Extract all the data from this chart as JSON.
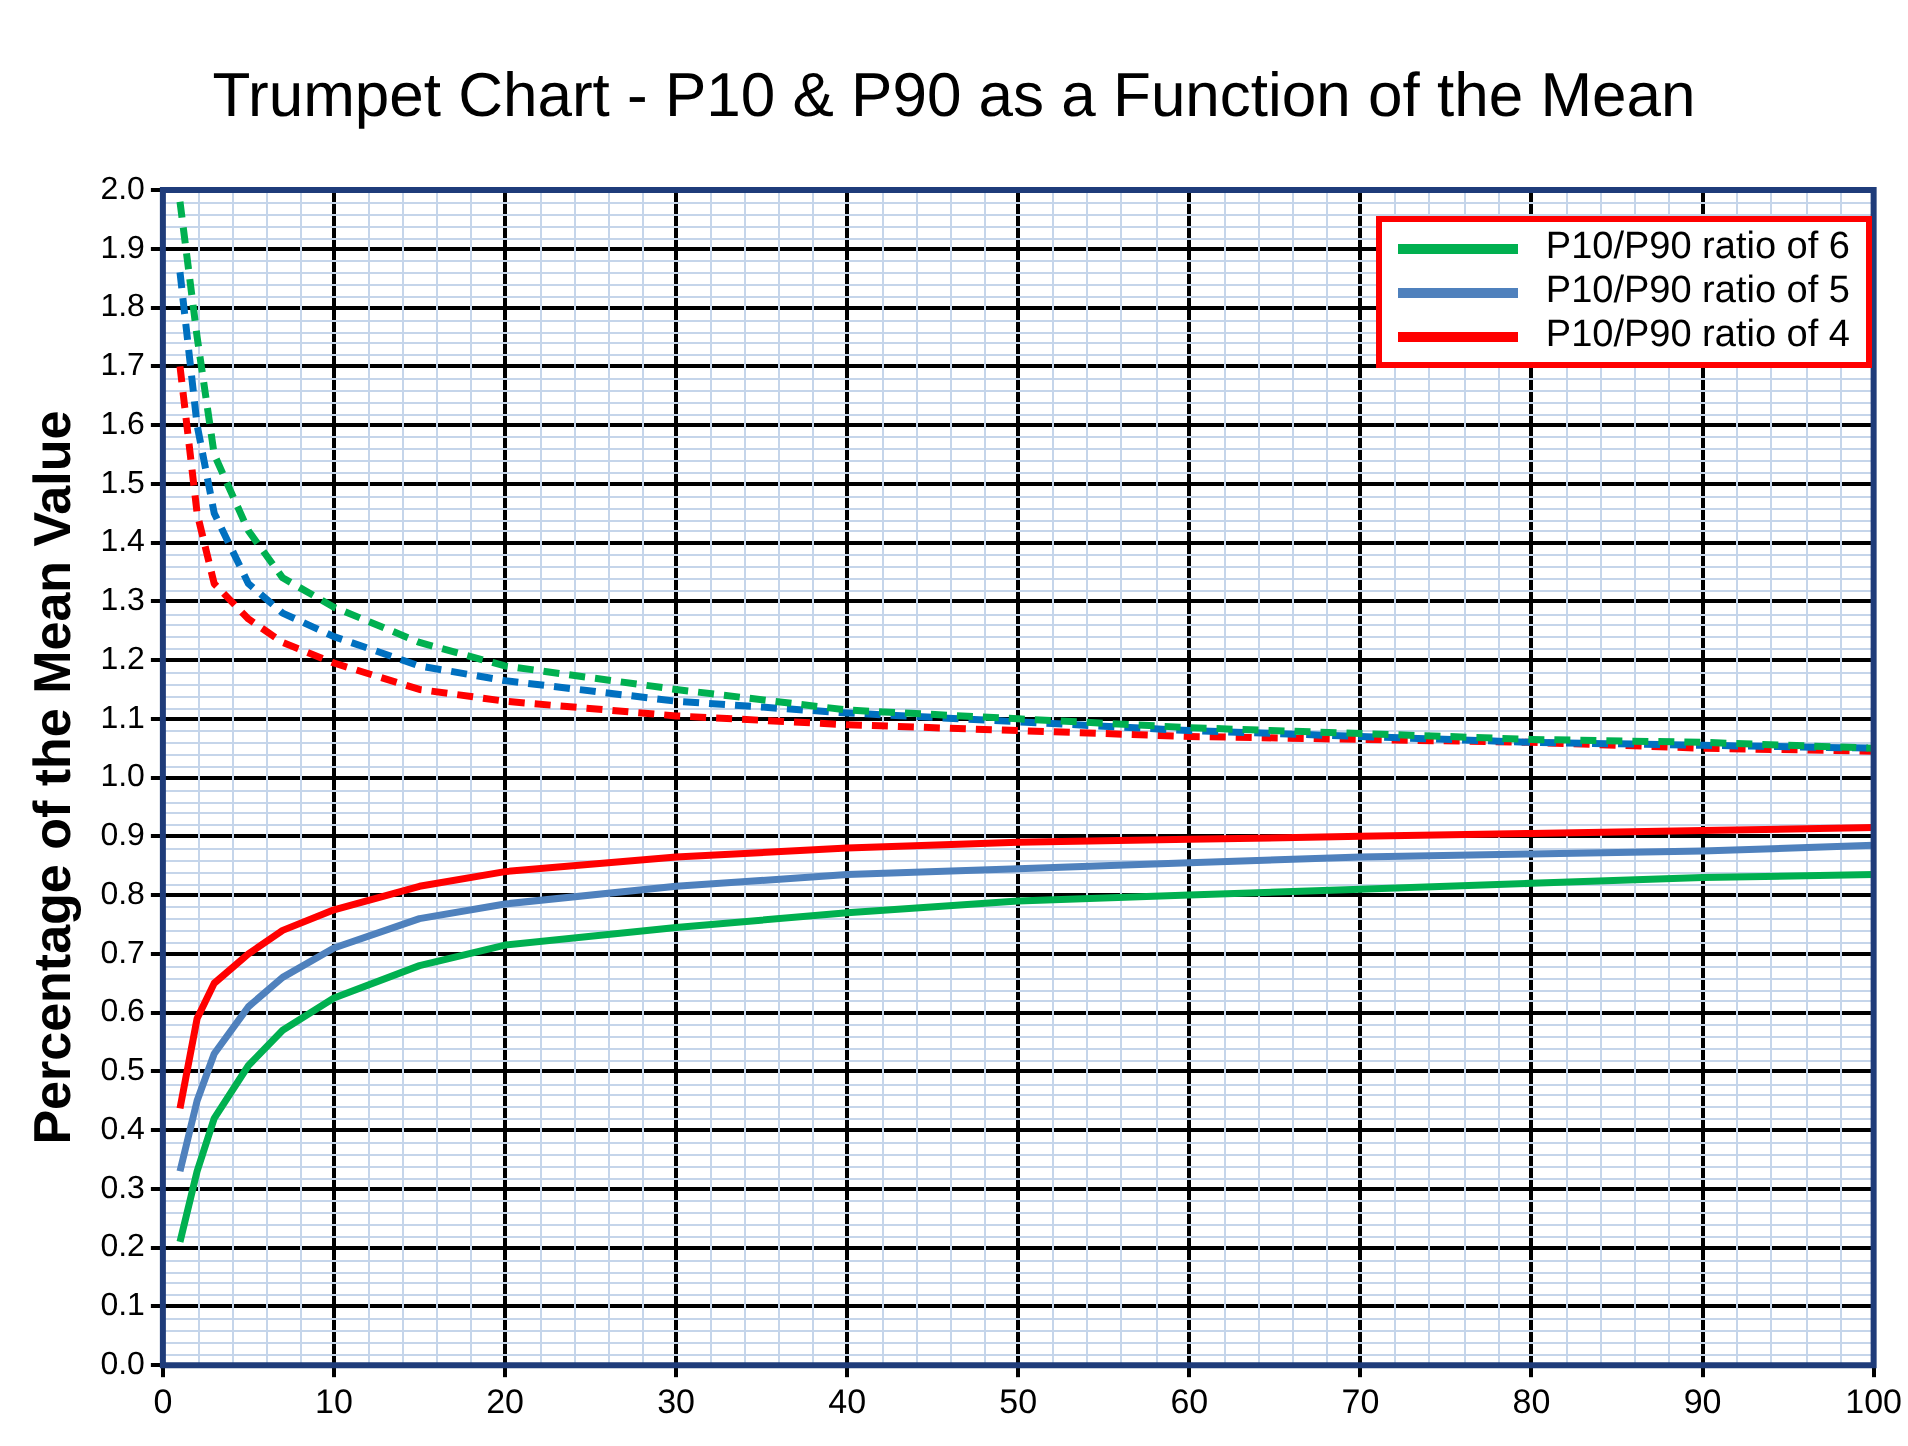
{
  "chart_data": {
    "type": "line",
    "title": "Trumpet Chart - P10 & P90 as a Function of the Mean",
    "ylabel": "Percentage of the Mean Value",
    "x": [
      1,
      2,
      3,
      5,
      7,
      10,
      15,
      20,
      30,
      40,
      50,
      60,
      70,
      80,
      90,
      100
    ],
    "series": [
      {
        "name": "P10/P90 ratio of 6",
        "color": "#00b050",
        "values": [
          0.21,
          0.33,
          0.42,
          0.51,
          0.57,
          0.625,
          0.68,
          0.715,
          0.745,
          0.77,
          0.79,
          0.8,
          0.81,
          0.82,
          0.83,
          0.835
        ]
      },
      {
        "name": "P10/P90 ratio of 5",
        "color": "#4f81bd",
        "values": [
          0.33,
          0.45,
          0.53,
          0.61,
          0.66,
          0.71,
          0.76,
          0.785,
          0.815,
          0.835,
          0.845,
          0.855,
          0.865,
          0.87,
          0.875,
          0.885
        ]
      },
      {
        "name": "P10/P90 ratio of 4",
        "color": "#ff0000",
        "values": [
          0.437,
          0.59,
          0.65,
          0.7,
          0.74,
          0.775,
          0.815,
          0.84,
          0.865,
          0.88,
          0.89,
          0.895,
          0.9,
          0.905,
          0.91,
          0.915
        ]
      },
      {
        "color": "#00b050",
        "line_style": "dashed",
        "values": [
          1.98,
          1.75,
          1.55,
          1.42,
          1.34,
          1.29,
          1.23,
          1.19,
          1.15,
          1.115,
          1.1,
          1.085,
          1.075,
          1.065,
          1.06,
          1.05
        ]
      },
      {
        "color": "#0070c0",
        "line_style": "dashed",
        "values": [
          1.86,
          1.6,
          1.45,
          1.33,
          1.28,
          1.24,
          1.19,
          1.165,
          1.13,
          1.11,
          1.095,
          1.08,
          1.07,
          1.06,
          1.055,
          1.05
        ]
      },
      {
        "color": "#ff0000",
        "line_style": "dashed",
        "values": [
          1.7,
          1.45,
          1.33,
          1.27,
          1.23,
          1.195,
          1.15,
          1.13,
          1.105,
          1.09,
          1.08,
          1.07,
          1.065,
          1.06,
          1.05,
          1.045
        ]
      }
    ],
    "xlim": [
      0,
      100
    ],
    "xticks": [
      0,
      10,
      20,
      30,
      40,
      50,
      60,
      70,
      80,
      90,
      100
    ],
    "ylim": [
      0,
      2
    ],
    "yticks": [
      {
        "value": 0,
        "label": "0.0"
      },
      0.1,
      0.2,
      0.3,
      0.4,
      0.5,
      0.6,
      0.7,
      0.8,
      0.9,
      {
        "value": 1,
        "label": "1.0"
      },
      1.1,
      1.2,
      1.3,
      1.4,
      1.5,
      1.6,
      1.7,
      1.8,
      1.9,
      {
        "value": 2,
        "label": "2.0"
      }
    ],
    "grid": true,
    "legend": "top right",
    "marker": "none",
    "line_style": "solid"
  }
}
